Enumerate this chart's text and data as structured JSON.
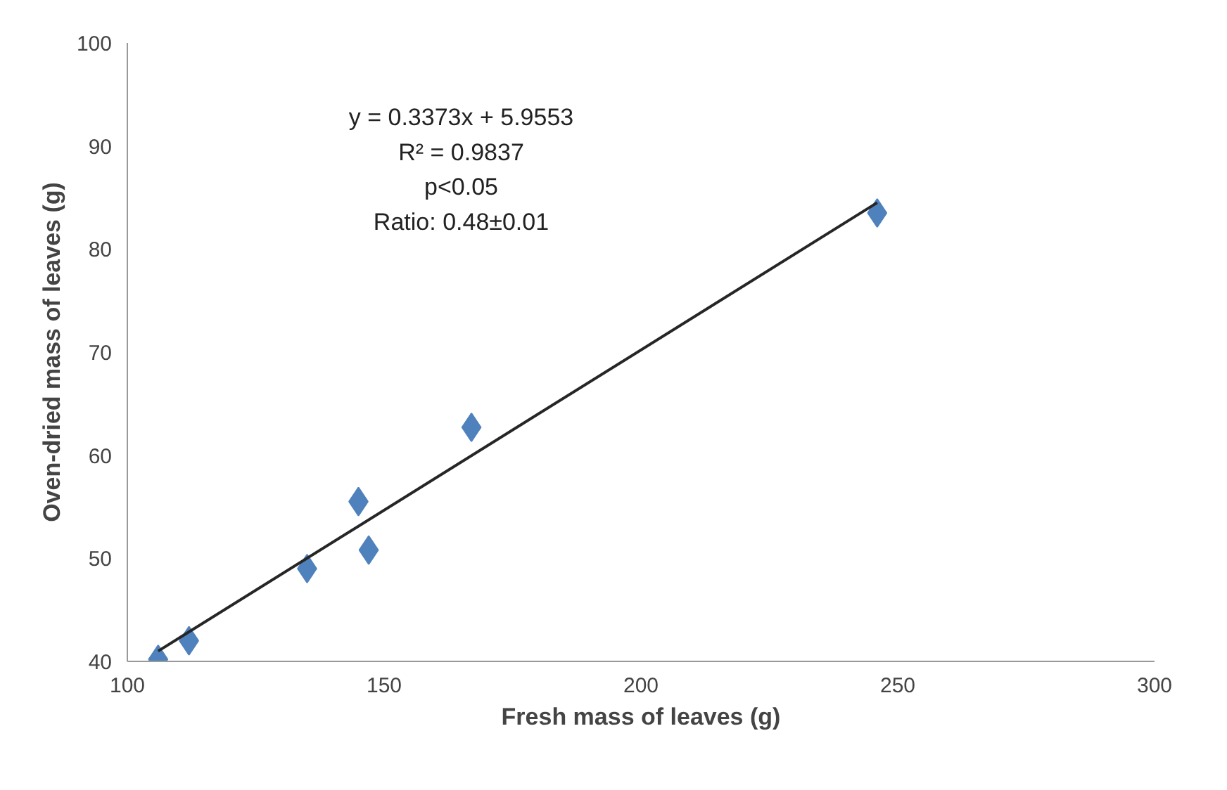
{
  "chart_data": {
    "type": "scatter",
    "xlabel": "Fresh mass of leaves (g)",
    "ylabel": "Oven-dried mass of leaves (g)",
    "xlim": [
      100,
      300
    ],
    "xticks": [
      100,
      150,
      200,
      250,
      300
    ],
    "ylim": [
      40,
      100
    ],
    "yticks": [
      40,
      50,
      60,
      70,
      80,
      90,
      100
    ],
    "grid": false,
    "series": [
      {
        "marker": "diamond",
        "color": "#4f81bd",
        "x": [
          106,
          112,
          135,
          145,
          147,
          167,
          246
        ],
        "values": [
          40.2,
          42,
          49,
          55.5,
          50.8,
          62.7,
          83.5
        ]
      },
      {
        "type": "line",
        "marker": "none",
        "color": "#262626",
        "x": [
          106,
          246
        ],
        "values": [
          41,
          84.5
        ]
      }
    ],
    "annotations": [
      "y = 0.3373x + 5.9553",
      "R² = 0.9837",
      "p<0.05",
      "Ratio: 0.48±0.01"
    ]
  }
}
